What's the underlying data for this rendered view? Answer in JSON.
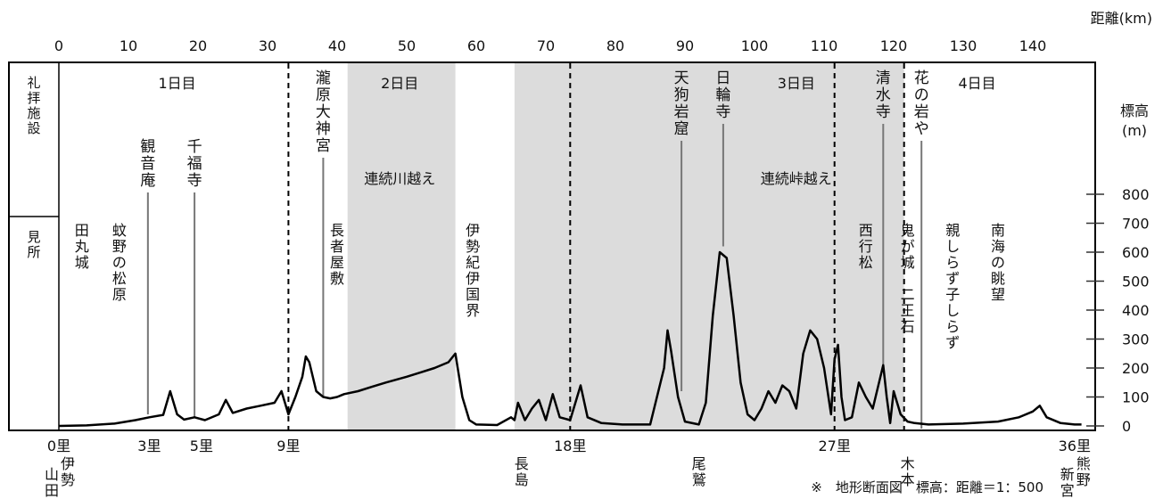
{
  "chart_data": {
    "type": "area",
    "x_axis": {
      "label": "距離(km)",
      "ticks": [
        "0",
        "10",
        "20",
        "30",
        "40",
        "50",
        "60",
        "70",
        "80",
        "90",
        "100",
        "110",
        "120",
        "130",
        "140"
      ],
      "range": [
        0,
        147
      ]
    },
    "y_axis": {
      "label_line1": "標高",
      "label_line2": "(m)",
      "ticks": [
        "800",
        "700",
        "600",
        "500",
        "400",
        "300",
        "200",
        "100",
        "0"
      ],
      "range": [
        0,
        900
      ]
    },
    "left_labels": {
      "top": [
        "礼",
        "拝",
        "施",
        "設"
      ],
      "bottom": [
        "見",
        "所"
      ]
    },
    "day_labels": [
      {
        "text": "1日目",
        "x": 17
      },
      {
        "text": "2日目",
        "x": 49
      },
      {
        "text": "3日目",
        "x": 106
      },
      {
        "text": "4日目",
        "x": 132
      }
    ],
    "shaded_regions": [
      {
        "x0": 41.5,
        "x1": 57,
        "label": "連続川越え",
        "label_x": 49
      },
      {
        "x0": 65.5,
        "x1": 121.5,
        "label": "連続峠越え",
        "label_x": 106
      }
    ],
    "day_boundaries": [
      33,
      73.5,
      111.5,
      121.5
    ],
    "facilities": [
      {
        "text": "観音庵",
        "x": 12.8,
        "to_elev": 40
      },
      {
        "text": "千福寺",
        "x": 19.5,
        "to_elev": 30
      },
      {
        "text": "瀧原大神宮",
        "x": 38,
        "to_elev": 100
      },
      {
        "text": "天狗岩窟",
        "x": 89.5,
        "to_elev": 120
      },
      {
        "text": "日輪寺",
        "x": 95.5,
        "to_elev": 620
      },
      {
        "text": "清水寺",
        "x": 118.5,
        "to_elev": 210
      },
      {
        "text": "花の岩や",
        "x": 124,
        "to_elev": 0
      }
    ],
    "sights": [
      {
        "text": "田丸城",
        "x": 3.3
      },
      {
        "text": "蚊野の松原",
        "x": 8.7
      },
      {
        "text": "長者屋敷",
        "x": 40
      },
      {
        "text": "伊勢紀伊国界",
        "x": 59.5
      },
      {
        "text": "西行松",
        "x": 116
      },
      {
        "text": "鬼が城 二王石",
        "x": 122
      },
      {
        "text": "親しらず子しらず",
        "x": 128.5
      },
      {
        "text": "南海の眺望",
        "x": 135
      }
    ],
    "waypoints": [
      {
        "text": "0里",
        "x": 0
      },
      {
        "text": "3里",
        "x": 13
      },
      {
        "text": "5里",
        "x": 20.5
      },
      {
        "text": "9里",
        "x": 33
      },
      {
        "text": "18里",
        "x": 73.5
      },
      {
        "text": "27里",
        "x": 111.5
      },
      {
        "text": "36里",
        "x": 146
      }
    ],
    "places": [
      {
        "text": "伊勢",
        "x": 0,
        "stack": "山田"
      },
      {
        "text": "長島",
        "x": 66.5
      },
      {
        "text": "尾鷲",
        "x": 92
      },
      {
        "text": "木本",
        "x": 122
      },
      {
        "text": "熊野",
        "x": 146,
        "stack": "新宮"
      }
    ],
    "note": "※　地形断面図　標高：距離＝1：500",
    "profile": [
      [
        0,
        0
      ],
      [
        4,
        2
      ],
      [
        8,
        8
      ],
      [
        11,
        20
      ],
      [
        13,
        30
      ],
      [
        15,
        38
      ],
      [
        16,
        120
      ],
      [
        17,
        40
      ],
      [
        18,
        22
      ],
      [
        19.5,
        30
      ],
      [
        21,
        20
      ],
      [
        23,
        40
      ],
      [
        24,
        90
      ],
      [
        25,
        45
      ],
      [
        27,
        60
      ],
      [
        29,
        70
      ],
      [
        31,
        80
      ],
      [
        32,
        120
      ],
      [
        33,
        40
      ],
      [
        34,
        100
      ],
      [
        35,
        170
      ],
      [
        35.5,
        240
      ],
      [
        36,
        220
      ],
      [
        37,
        120
      ],
      [
        38,
        100
      ],
      [
        39,
        95
      ],
      [
        40,
        100
      ],
      [
        41,
        110
      ],
      [
        43,
        120
      ],
      [
        45,
        135
      ],
      [
        47,
        150
      ],
      [
        50,
        170
      ],
      [
        52,
        185
      ],
      [
        54,
        200
      ],
      [
        56,
        220
      ],
      [
        57,
        250
      ],
      [
        58,
        100
      ],
      [
        59,
        20
      ],
      [
        60,
        5
      ],
      [
        63,
        3
      ],
      [
        65,
        30
      ],
      [
        65.5,
        20
      ],
      [
        66,
        80
      ],
      [
        67,
        20
      ],
      [
        68,
        60
      ],
      [
        69,
        90
      ],
      [
        70,
        20
      ],
      [
        71,
        110
      ],
      [
        72,
        30
      ],
      [
        73.5,
        20
      ],
      [
        75,
        140
      ],
      [
        76,
        30
      ],
      [
        78,
        10
      ],
      [
        81,
        5
      ],
      [
        85,
        5
      ],
      [
        87,
        200
      ],
      [
        87.5,
        330
      ],
      [
        88,
        260
      ],
      [
        89,
        100
      ],
      [
        90,
        15
      ],
      [
        92,
        5
      ],
      [
        93,
        80
      ],
      [
        94,
        380
      ],
      [
        95,
        600
      ],
      [
        96,
        580
      ],
      [
        97,
        380
      ],
      [
        98,
        150
      ],
      [
        99,
        40
      ],
      [
        100,
        20
      ],
      [
        101,
        60
      ],
      [
        102,
        120
      ],
      [
        103,
        80
      ],
      [
        104,
        140
      ],
      [
        105,
        120
      ],
      [
        106,
        60
      ],
      [
        107,
        250
      ],
      [
        108,
        330
      ],
      [
        109,
        300
      ],
      [
        110,
        200
      ],
      [
        111,
        40
      ],
      [
        111.5,
        230
      ],
      [
        112,
        280
      ],
      [
        112.5,
        100
      ],
      [
        113,
        20
      ],
      [
        114,
        30
      ],
      [
        115,
        150
      ],
      [
        116,
        100
      ],
      [
        117,
        60
      ],
      [
        118,
        160
      ],
      [
        118.5,
        210
      ],
      [
        119,
        100
      ],
      [
        119.5,
        10
      ],
      [
        120,
        120
      ],
      [
        121,
        40
      ],
      [
        122,
        15
      ],
      [
        123,
        10
      ],
      [
        125,
        5
      ],
      [
        130,
        8
      ],
      [
        135,
        15
      ],
      [
        138,
        30
      ],
      [
        140,
        50
      ],
      [
        141,
        70
      ],
      [
        142,
        30
      ],
      [
        144,
        10
      ],
      [
        146,
        5
      ],
      [
        147,
        5
      ]
    ]
  }
}
